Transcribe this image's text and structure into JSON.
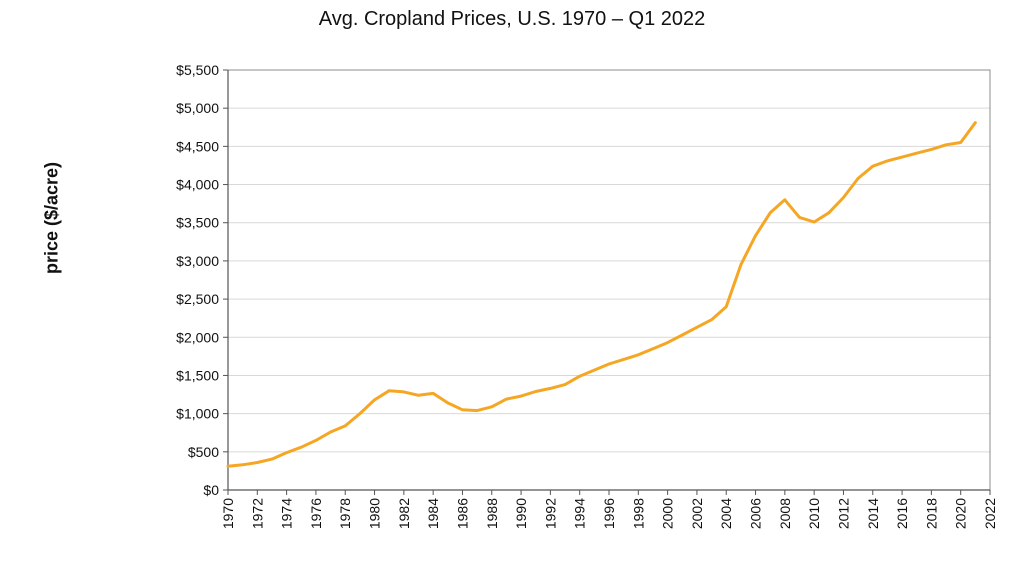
{
  "chart_data": {
    "type": "line",
    "title": "Avg. Cropland Prices, U.S. 1970 – Q1 2022",
    "xlabel": "",
    "ylabel": "price ($/acre)",
    "xlim": [
      1970,
      2022
    ],
    "ylim": [
      0,
      5500
    ],
    "grid": true,
    "legend": "none",
    "x_ticks": [
      "1970",
      "1972",
      "1974",
      "1976",
      "1978",
      "1980",
      "1982",
      "1984",
      "1986",
      "1988",
      "1990",
      "1992",
      "1994",
      "1996",
      "1998",
      "2000",
      "2002",
      "2004",
      "2006",
      "2008",
      "2010",
      "2012",
      "2014",
      "2016",
      "2018",
      "2020",
      "2022"
    ],
    "y_ticks": [
      "$0",
      "$500",
      "$1,000",
      "$1,500",
      "$2,000",
      "$2,500",
      "$3,000",
      "$3,500",
      "$4,000",
      "$4,500",
      "$5,000",
      "$5,500"
    ],
    "series": [
      {
        "color": "#F5A623",
        "x": [
          1970,
          1971,
          1972,
          1973,
          1974,
          1975,
          1976,
          1977,
          1978,
          1979,
          1980,
          1981,
          1982,
          1983,
          1984,
          1985,
          1986,
          1987,
          1988,
          1989,
          1990,
          1991,
          1992,
          1993,
          1994,
          1995,
          1996,
          1997,
          1998,
          1999,
          2000,
          2001,
          2002,
          2003,
          2004,
          2005,
          2006,
          2007,
          2008,
          2009,
          2010,
          2011,
          2012,
          2013,
          2014,
          2015,
          2016,
          2017,
          2018,
          2019,
          2020,
          2021
        ],
        "values": [
          310,
          330,
          360,
          405,
          490,
          560,
          650,
          760,
          840,
          1000,
          1180,
          1300,
          1285,
          1240,
          1265,
          1140,
          1050,
          1040,
          1090,
          1190,
          1230,
          1290,
          1330,
          1380,
          1490,
          1570,
          1650,
          1710,
          1770,
          1850,
          1930,
          2030,
          2130,
          2230,
          2400,
          2950,
          3330,
          3630,
          3800,
          3570,
          3510,
          3630,
          3830,
          4080,
          4240,
          4310,
          4360,
          4410,
          4460,
          4520,
          4550,
          4810
        ]
      }
    ]
  }
}
